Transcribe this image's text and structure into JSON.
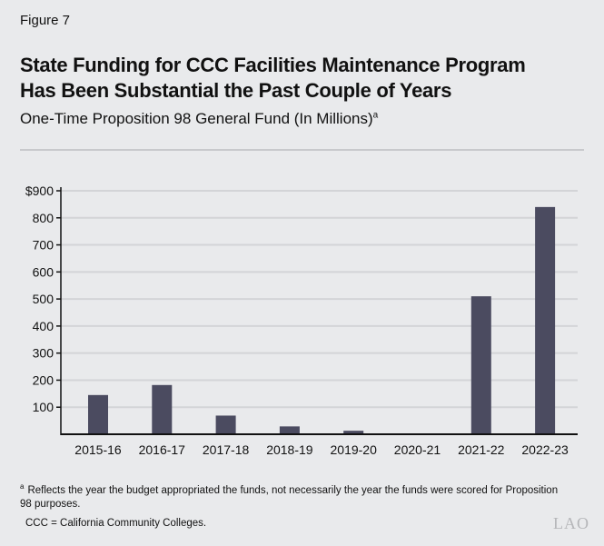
{
  "figure_label": "Figure 7",
  "title_line1": "State Funding for CCC Facilities Maintenance Program",
  "title_line2": "Has Been Substantial the Past Couple of Years",
  "subtitle": "One-Time Proposition 98 General Fund (In Millions)",
  "subtitle_footnote_mark": "a",
  "footnote_mark": "a",
  "footnote": "Reflects the year the budget appropriated the funds, not necessarily the year the funds were scored for Proposition 98 purposes.",
  "abbreviation_note": "CCC = California Community Colleges.",
  "logo_text": "LAO",
  "chart_data": {
    "type": "bar",
    "categories": [
      "2015-16",
      "2016-17",
      "2017-18",
      "2018-19",
      "2019-20",
      "2020-21",
      "2021-22",
      "2022-23"
    ],
    "values": [
      145,
      182,
      69,
      29,
      13,
      0,
      510,
      840
    ],
    "ylim": [
      0,
      900
    ],
    "yticks": [
      100,
      200,
      300,
      400,
      500,
      600,
      700,
      800,
      900
    ],
    "ytick_labels": [
      "100",
      "200",
      "300",
      "400",
      "500",
      "600",
      "700",
      "800",
      "$900"
    ],
    "grid": true,
    "bar_color": "#4b4b60"
  }
}
